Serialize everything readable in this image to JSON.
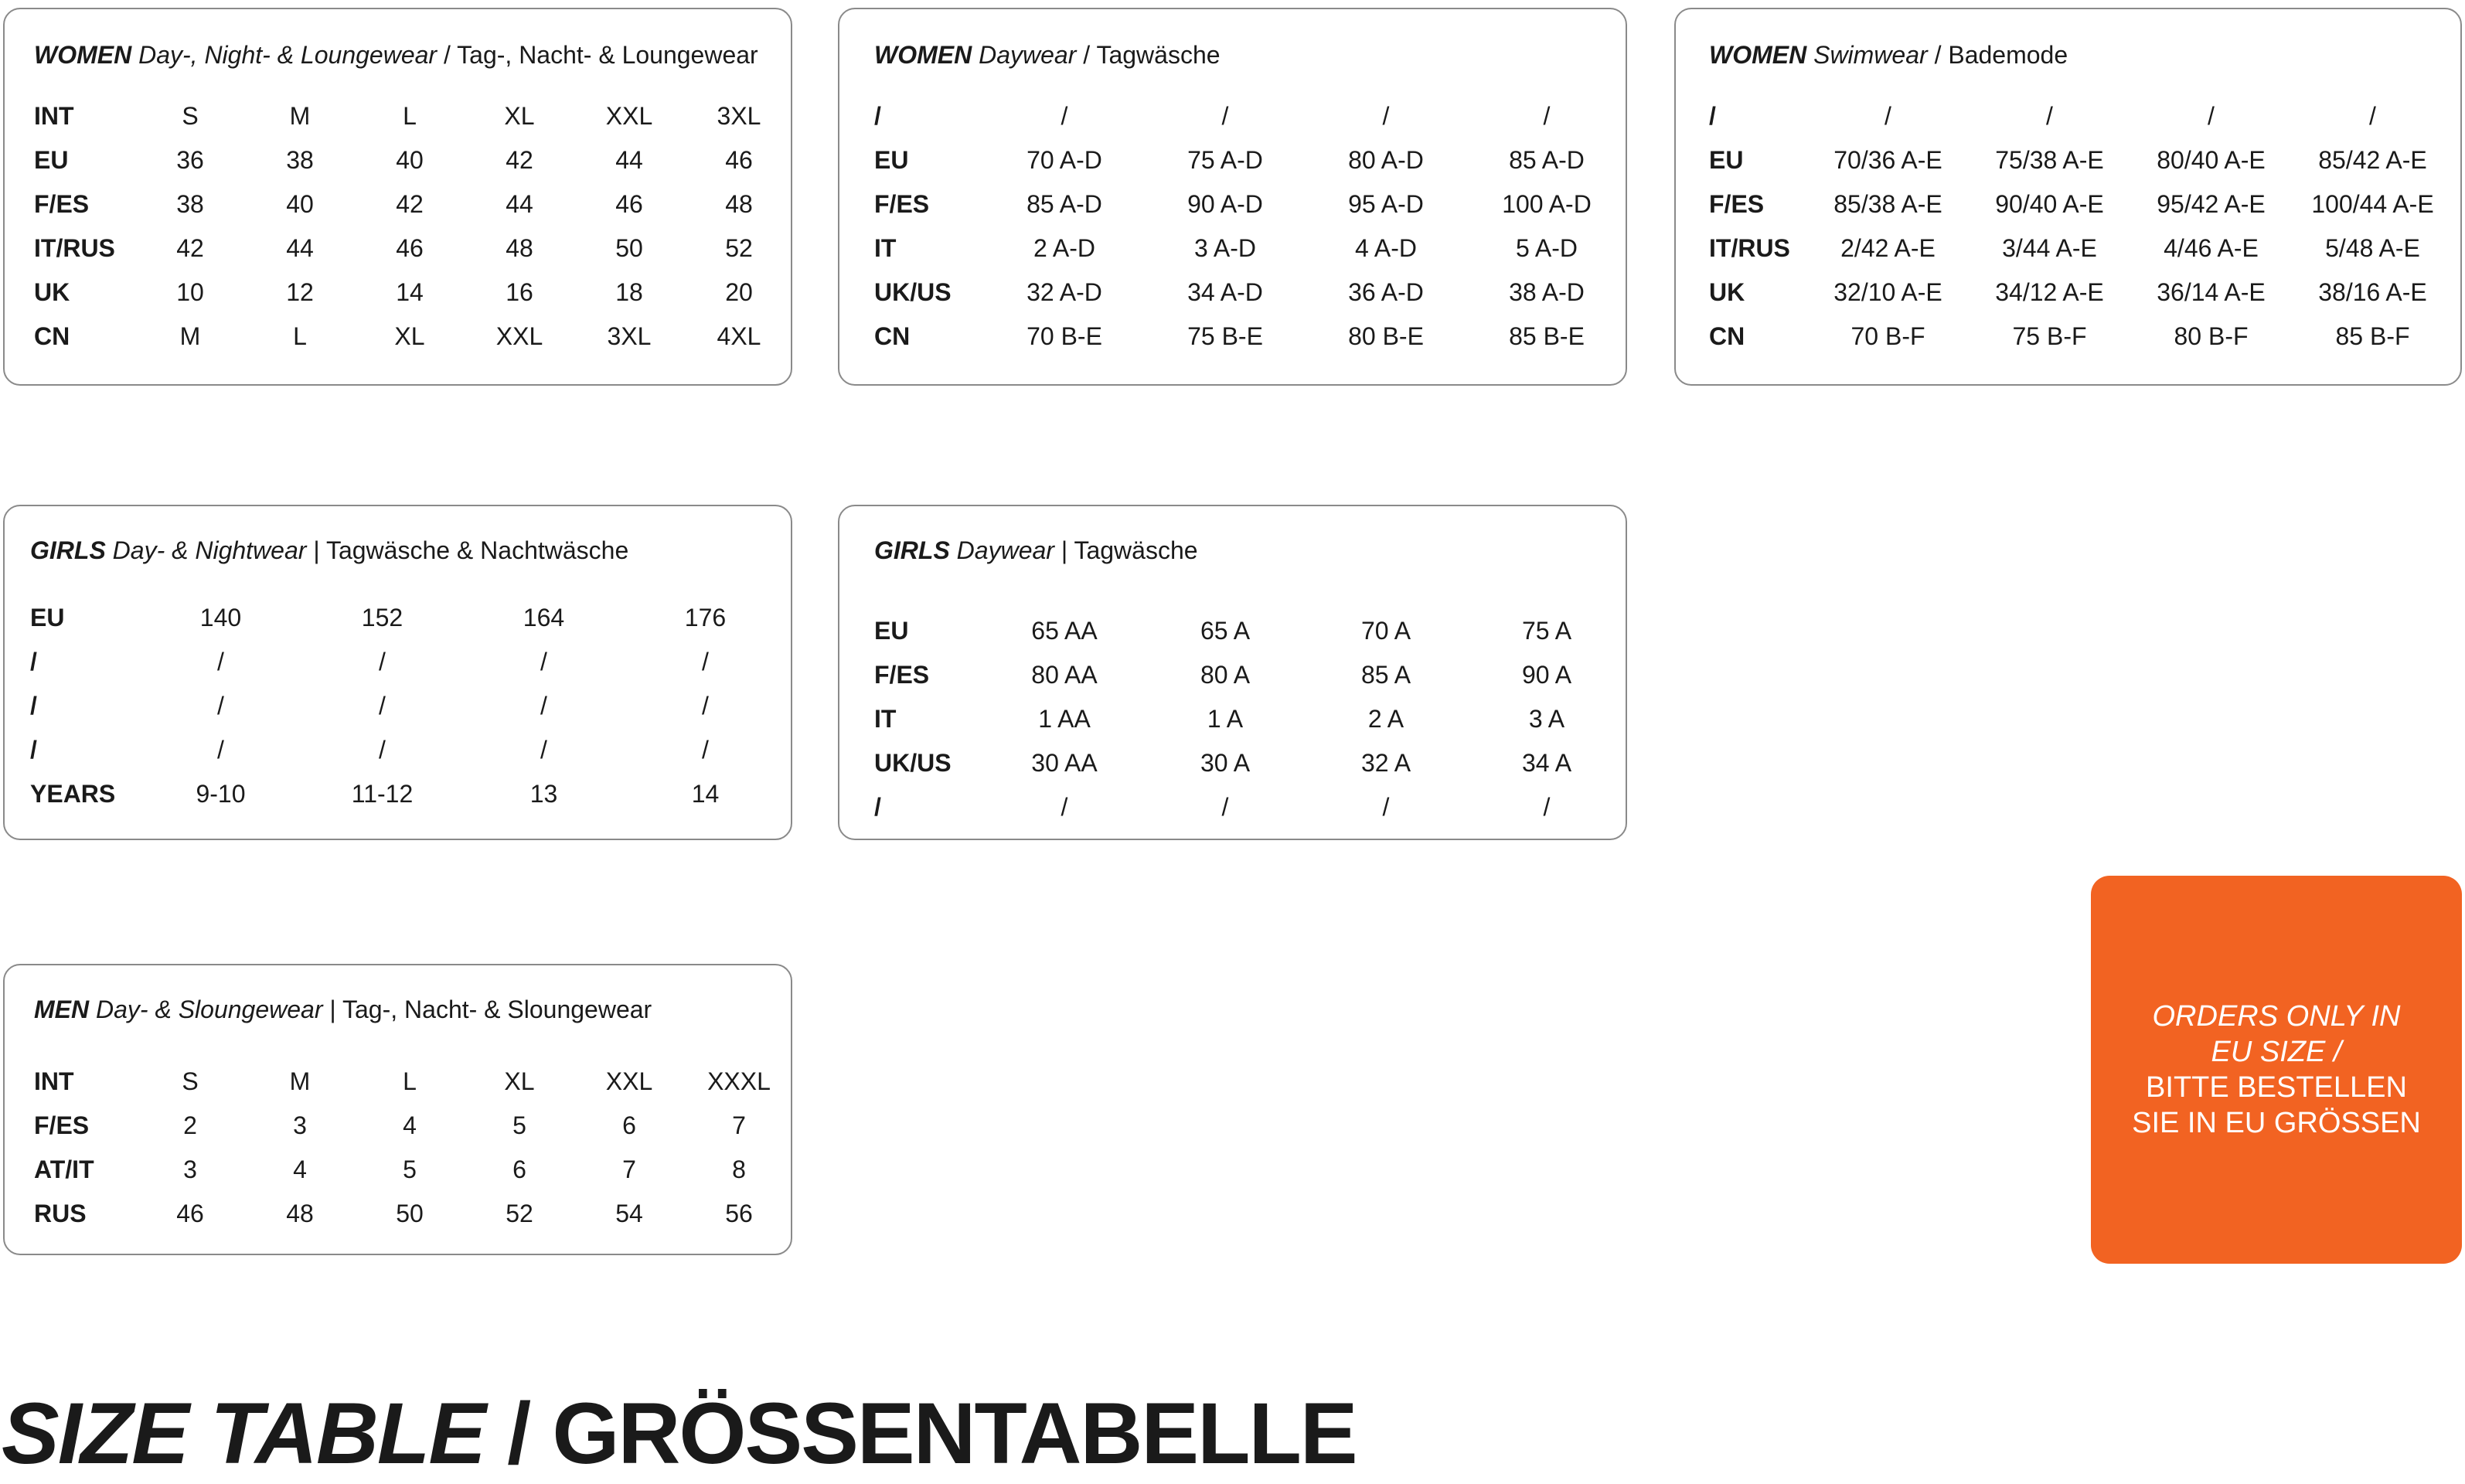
{
  "tables": [
    {
      "category": "WOMEN",
      "name_en": "Day-, Night- & Loungewear",
      "name_de": " / Tag-, Nacht- & Loungewear",
      "rows": [
        [
          "INT",
          "S",
          "M",
          "L",
          "XL",
          "XXL",
          "3XL"
        ],
        [
          "EU",
          "36",
          "38",
          "40",
          "42",
          "44",
          "46"
        ],
        [
          "F/ES",
          "38",
          "40",
          "42",
          "44",
          "46",
          "48"
        ],
        [
          "IT/RUS",
          "42",
          "44",
          "46",
          "48",
          "50",
          "52"
        ],
        [
          "UK",
          "10",
          "12",
          "14",
          "16",
          "18",
          "20"
        ],
        [
          "CN",
          "M",
          "L",
          "XL",
          "XXL",
          "3XL",
          "4XL"
        ]
      ]
    },
    {
      "category": "WOMEN",
      "name_en": "Daywear",
      "name_de": " / Tagwäsche",
      "rows": [
        [
          "/",
          "/",
          "/",
          "/",
          "/"
        ],
        [
          "EU",
          "70 A-D",
          "75 A-D",
          "80 A-D",
          "85 A-D"
        ],
        [
          "F/ES",
          "85 A-D",
          "90 A-D",
          "95 A-D",
          "100 A-D"
        ],
        [
          "IT",
          "2 A-D",
          "3 A-D",
          "4 A-D",
          "5 A-D"
        ],
        [
          "UK/US",
          "32 A-D",
          "34 A-D",
          "36 A-D",
          "38 A-D"
        ],
        [
          "CN",
          "70 B-E",
          "75 B-E",
          "80 B-E",
          "85 B-E"
        ]
      ]
    },
    {
      "category": "WOMEN",
      "name_en": "Swimwear",
      "name_de": " / Bademode",
      "rows": [
        [
          "/",
          "/",
          "/",
          "/",
          "/"
        ],
        [
          "EU",
          "70/36 A-E",
          "75/38 A-E",
          "80/40 A-E",
          "85/42 A-E"
        ],
        [
          "F/ES",
          "85/38 A-E",
          "90/40 A-E",
          "95/42 A-E",
          "100/44 A-E"
        ],
        [
          "IT/RUS",
          "2/42 A-E",
          "3/44 A-E",
          "4/46 A-E",
          "5/48 A-E"
        ],
        [
          "UK",
          "32/10 A-E",
          "34/12 A-E",
          "36/14 A-E",
          "38/16 A-E"
        ],
        [
          "CN",
          "70 B-F",
          "75 B-F",
          "80 B-F",
          "85 B-F"
        ]
      ]
    },
    {
      "category": "GIRLS",
      "name_en": "Day- & Nightwear",
      "name_de": " | Tagwäsche & Nachtwäsche",
      "rows": [
        [
          "EU",
          "140",
          "152",
          "164",
          "176"
        ],
        [
          "/",
          "/",
          "/",
          "/",
          "/"
        ],
        [
          "/",
          "/",
          "/",
          "/",
          "/"
        ],
        [
          "/",
          "/",
          "/",
          "/",
          "/"
        ],
        [
          "YEARS",
          "9-10",
          "11-12",
          "13",
          "14"
        ]
      ]
    },
    {
      "category": "GIRLS",
      "name_en": "Daywear",
      "name_de": " | Tagwäsche",
      "rows": [
        [
          "EU",
          "65 AA",
          "65 A",
          "70 A",
          "75 A"
        ],
        [
          "F/ES",
          "80 AA",
          "80 A",
          "85 A",
          "90 A"
        ],
        [
          "IT",
          "1 AA",
          "1 A",
          "2 A",
          "3 A"
        ],
        [
          "UK/US",
          "30 AA",
          "30 A",
          "32 A",
          "34 A"
        ],
        [
          "/",
          "/",
          "/",
          "/",
          "/"
        ]
      ]
    },
    {
      "category": "MEN",
      "name_en": "Day- & Sloungewear",
      "name_de": " | Tag-, Nacht- & Sloungewear",
      "rows": [
        [
          "INT",
          "S",
          "M",
          "L",
          "XL",
          "XXL",
          "XXXL"
        ],
        [
          "F/ES",
          "2",
          "3",
          "4",
          "5",
          "6",
          "7"
        ],
        [
          "AT/IT",
          "3",
          "4",
          "5",
          "6",
          "7",
          "8"
        ],
        [
          "RUS",
          "46",
          "48",
          "50",
          "52",
          "54",
          "56"
        ]
      ]
    }
  ],
  "notice": {
    "line1": "ORDERS ONLY IN",
    "line2": "EU SIZE /",
    "line3": "BITTE BESTELLEN",
    "line4": "SIE IN EU GRÖSSEN",
    "color": "#f26322"
  },
  "title": {
    "en": "SIZE TABLE",
    "de": " / GRÖSSENTABELLE"
  }
}
